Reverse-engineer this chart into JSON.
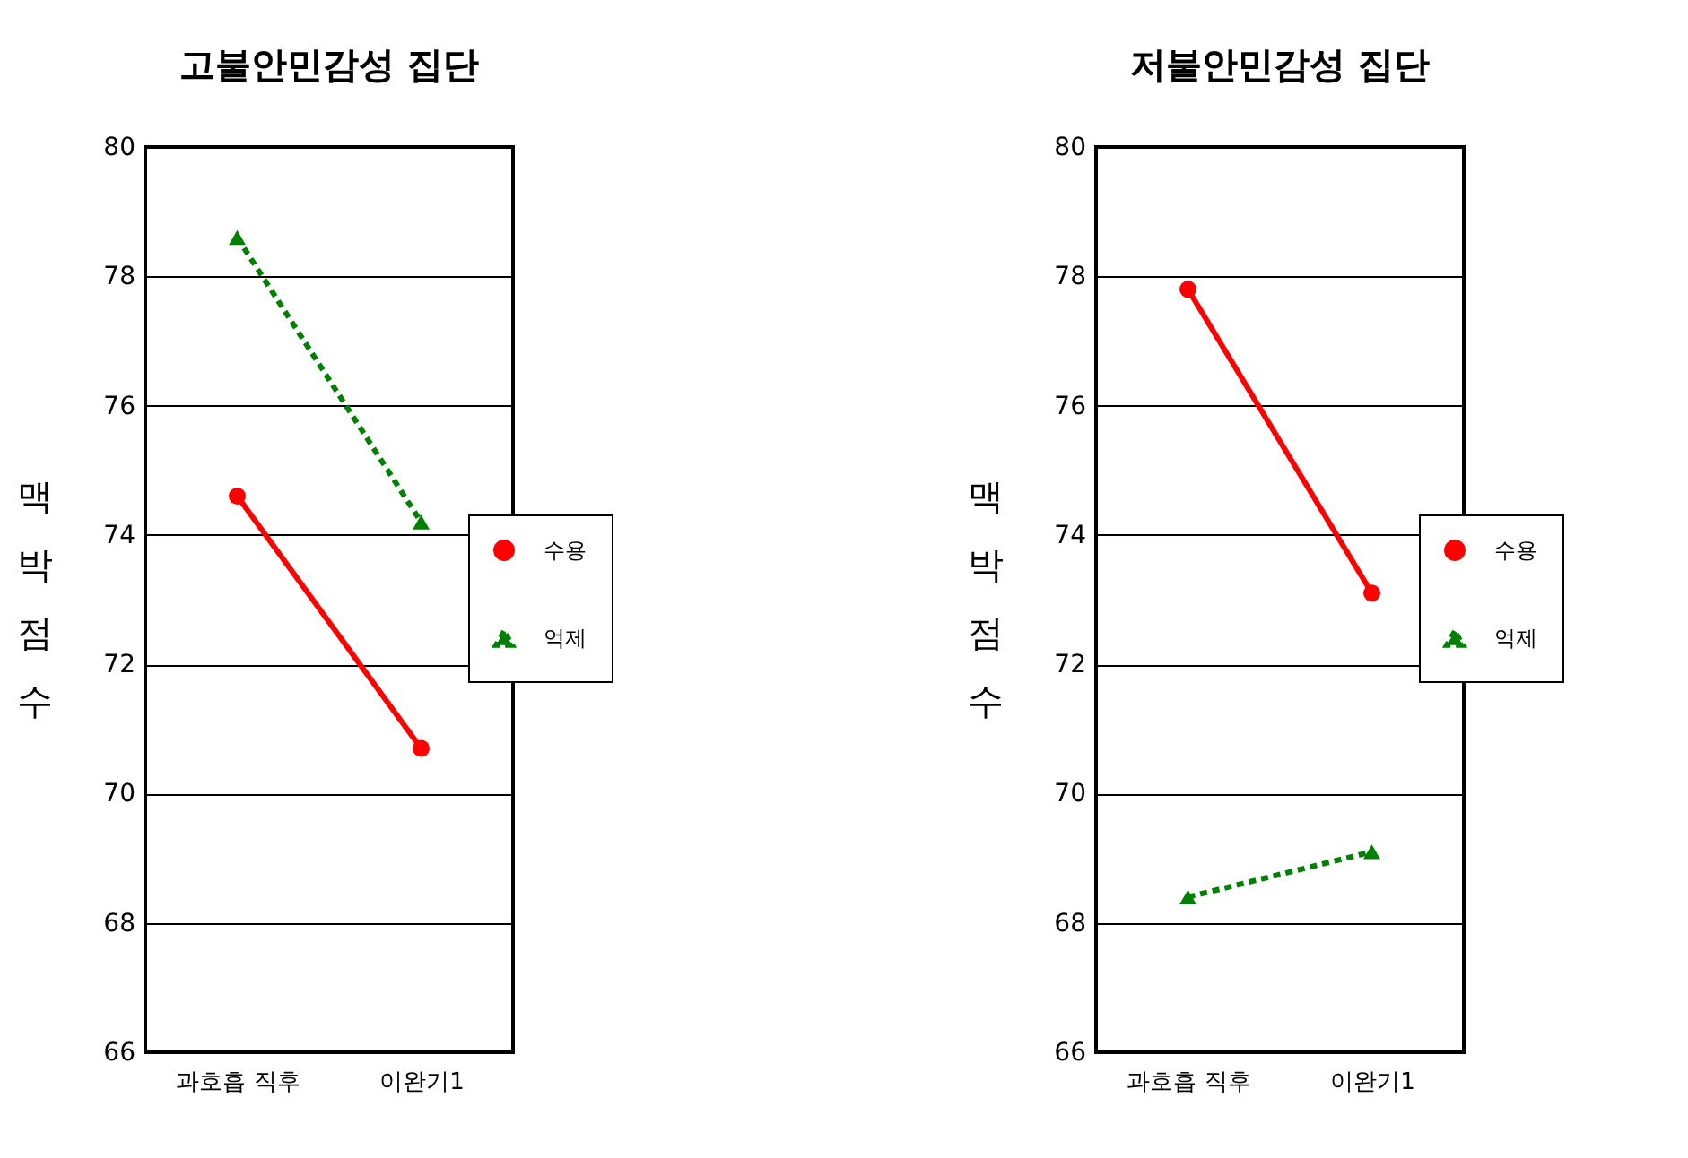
{
  "chart_data": [
    {
      "type": "line",
      "title": "고불안민감성  집단",
      "ylabel": "맥박점수",
      "categories": [
        "과호흡 직후",
        "이완기1"
      ],
      "ylim": [
        66,
        80
      ],
      "yticks": [
        66,
        68,
        70,
        72,
        74,
        76,
        78,
        80
      ],
      "grid": "y",
      "legend": "right",
      "series": [
        {
          "name": "수용",
          "color": "#ff0000",
          "values": [
            74.6,
            70.7
          ],
          "marker": "circle",
          "line_style": "solid"
        },
        {
          "name": "억제",
          "color": "#008000",
          "values": [
            78.6,
            74.2
          ],
          "marker": "triangle",
          "line_style": "dotted"
        }
      ]
    },
    {
      "type": "line",
      "title": "저불안민감성  집단",
      "ylabel": "맥박점수",
      "categories": [
        "과호흡 직후",
        "이완기1"
      ],
      "ylim": [
        66,
        80
      ],
      "yticks": [
        66,
        68,
        70,
        72,
        74,
        76,
        78,
        80
      ],
      "grid": "y",
      "legend": "right",
      "series": [
        {
          "name": "수용",
          "color": "#ff0000",
          "values": [
            77.8,
            73.1
          ],
          "marker": "circle",
          "line_style": "solid"
        },
        {
          "name": "억제",
          "color": "#008000",
          "values": [
            68.4,
            69.1
          ],
          "marker": "triangle",
          "line_style": "dotted"
        }
      ]
    }
  ]
}
